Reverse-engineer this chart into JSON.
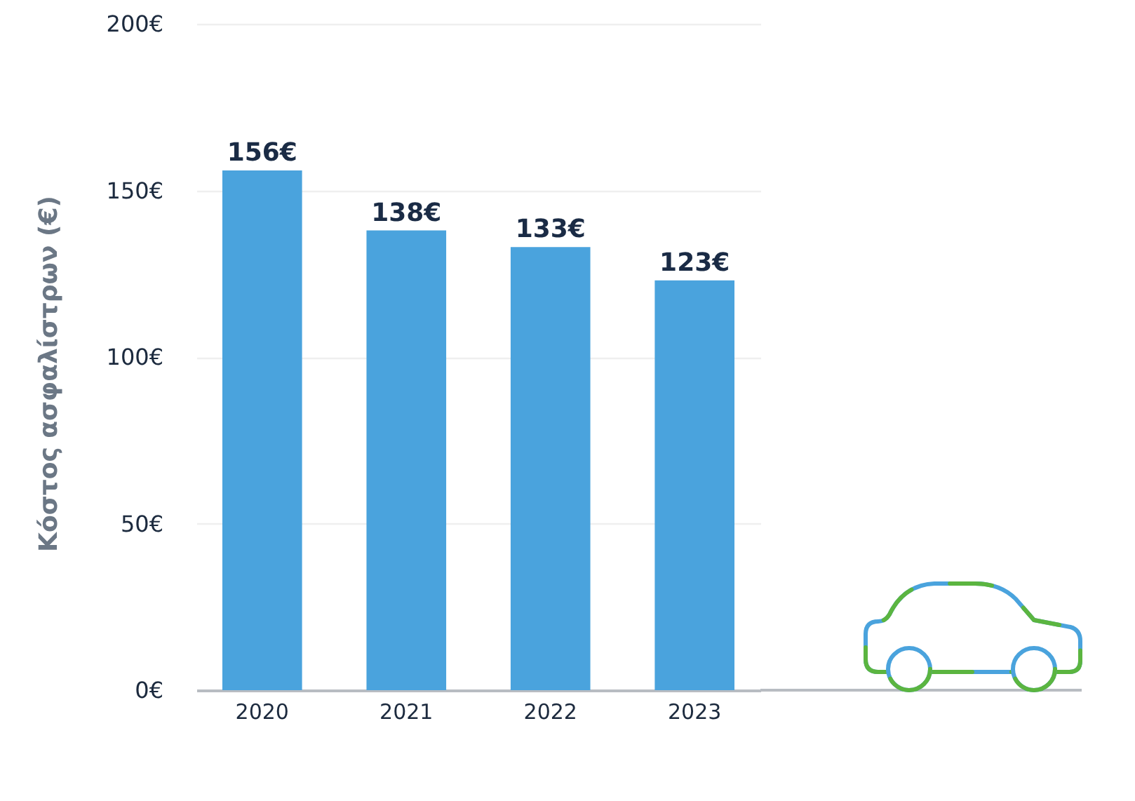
{
  "chart_data": {
    "type": "bar",
    "categories": [
      "2020",
      "2021",
      "2022",
      "2023"
    ],
    "values": [
      156,
      138,
      133,
      123
    ],
    "value_labels": [
      "156€",
      "138€",
      "133€",
      "123€"
    ],
    "color": "#4aa3dd",
    "ylabel": "Κόστος ασφαλίστρων (€)",
    "ylim": [
      0,
      200
    ],
    "yticks": [
      {
        "value": 0,
        "label": "0€"
      },
      {
        "value": 50,
        "label": "50€"
      },
      {
        "value": 100,
        "label": "100€"
      },
      {
        "value": 150,
        "label": "150€"
      },
      {
        "value": 200,
        "label": "200€"
      }
    ],
    "grid": "y"
  }
}
